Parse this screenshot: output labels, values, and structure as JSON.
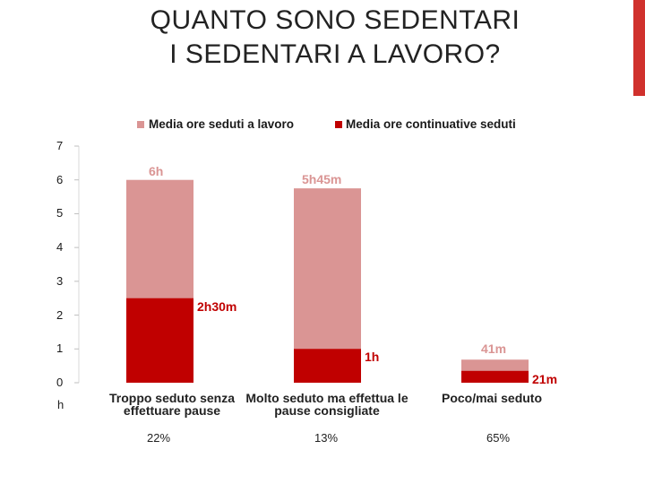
{
  "slide": {
    "title_line1": "QUANTO SONO SEDENTARI",
    "title_line2": "I SEDENTARI A LAVORO?",
    "unit_label": "h"
  },
  "colors": {
    "total": "#da9594",
    "continuous": "#c00000",
    "accent": "#d0312d"
  },
  "chart_data": {
    "type": "bar",
    "title": "",
    "xlabel": "",
    "ylabel": "h",
    "ylim": [
      0,
      7
    ],
    "yticks": [
      "0",
      "1",
      "2",
      "3",
      "4",
      "5",
      "6",
      "7"
    ],
    "categories": [
      "Troppo seduto senza effettuare pause",
      "Molto seduto ma effettua le pause consigliate",
      "Poco/mai seduto"
    ],
    "category_lines": [
      [
        "Troppo seduto senza",
        "effettuare pause"
      ],
      [
        "Molto seduto ma effettua le",
        "pause consigliate"
      ],
      [
        "Poco/mai seduto"
      ]
    ],
    "percentages": [
      "22%",
      "13%",
      "65%"
    ],
    "series": [
      {
        "name": "Media ore seduti a lavoro",
        "values": [
          6,
          5.75,
          0.683
        ],
        "labels": [
          "6h",
          "5h45m",
          "41m"
        ]
      },
      {
        "name": "Media ore continuative seduti",
        "values": [
          2.5,
          1,
          0.35
        ],
        "labels": [
          "2h30m",
          "1h",
          "21m"
        ]
      }
    ]
  }
}
